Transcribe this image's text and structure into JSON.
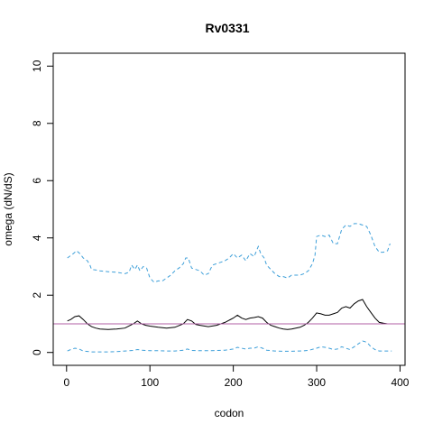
{
  "chart_data": {
    "type": "line",
    "title": "Rv0331",
    "xlabel": "codon",
    "ylabel": "omega (dN/dS)",
    "xlim": [
      -16,
      406
    ],
    "ylim": [
      -0.45,
      10.45
    ],
    "xticks": [
      0,
      100,
      200,
      300,
      400
    ],
    "yticks": [
      0,
      2,
      4,
      6,
      8,
      10
    ],
    "xtick_labels": [
      "0",
      "100",
      "200",
      "300",
      "400"
    ],
    "ytick_labels": [
      "0",
      "2",
      "4",
      "6",
      "8",
      "10"
    ],
    "grid": false,
    "legend": "none",
    "reference_line": {
      "y": 1,
      "color": "#b05fa5"
    },
    "series": [
      {
        "role": "upper",
        "color": "#3d9fd9",
        "style": "dashed",
        "x": [
          1,
          8,
          12,
          16,
          20,
          25,
          28,
          30,
          35,
          40,
          50,
          60,
          70,
          75,
          78,
          82,
          85,
          88,
          92,
          96,
          100,
          105,
          110,
          115,
          120,
          125,
          130,
          135,
          140,
          143,
          146,
          150,
          155,
          160,
          165,
          170,
          175,
          180,
          185,
          190,
          195,
          200,
          205,
          210,
          215,
          220,
          225,
          230,
          233,
          237,
          240,
          245,
          250,
          255,
          260,
          265,
          270,
          275,
          280,
          285,
          290,
          295,
          298,
          300,
          305,
          310,
          315,
          320,
          325,
          330,
          335,
          340,
          345,
          350,
          355,
          360,
          365,
          370,
          375,
          380,
          385,
          388
        ],
        "y": [
          3.3,
          3.45,
          3.55,
          3.45,
          3.3,
          3.2,
          3.05,
          2.9,
          2.88,
          2.85,
          2.82,
          2.8,
          2.75,
          2.8,
          3.05,
          2.9,
          3.05,
          2.85,
          3.0,
          2.95,
          2.6,
          2.45,
          2.5,
          2.5,
          2.6,
          2.7,
          2.85,
          2.95,
          3.1,
          3.3,
          3.3,
          2.95,
          2.9,
          2.85,
          2.7,
          2.75,
          3.05,
          3.1,
          3.15,
          3.2,
          3.3,
          3.45,
          3.3,
          3.4,
          3.2,
          3.45,
          3.35,
          3.7,
          3.45,
          3.3,
          3.05,
          2.9,
          2.75,
          2.65,
          2.65,
          2.6,
          2.7,
          2.7,
          2.7,
          2.75,
          2.85,
          3.1,
          3.4,
          4.05,
          4.1,
          4.05,
          4.1,
          3.8,
          3.8,
          4.3,
          4.45,
          4.4,
          4.5,
          4.5,
          4.45,
          4.4,
          4.1,
          3.7,
          3.5,
          3.5,
          3.55,
          3.8
        ]
      },
      {
        "role": "estimate",
        "color": "#000000",
        "style": "solid",
        "x": [
          1,
          5,
          10,
          15,
          20,
          25,
          30,
          35,
          40,
          50,
          60,
          70,
          80,
          85,
          90,
          95,
          100,
          110,
          120,
          130,
          140,
          145,
          150,
          155,
          160,
          170,
          180,
          190,
          200,
          205,
          210,
          215,
          220,
          225,
          230,
          235,
          240,
          245,
          250,
          255,
          260,
          265,
          270,
          275,
          280,
          285,
          290,
          295,
          300,
          305,
          310,
          315,
          320,
          325,
          330,
          335,
          340,
          345,
          350,
          355,
          360,
          365,
          370,
          375,
          380,
          385,
          390
        ],
        "y": [
          1.1,
          1.15,
          1.25,
          1.28,
          1.15,
          1.0,
          0.9,
          0.85,
          0.82,
          0.8,
          0.82,
          0.85,
          1.0,
          1.1,
          1.0,
          0.95,
          0.92,
          0.88,
          0.85,
          0.88,
          1.0,
          1.15,
          1.1,
          0.98,
          0.95,
          0.9,
          0.95,
          1.05,
          1.2,
          1.3,
          1.2,
          1.15,
          1.2,
          1.22,
          1.25,
          1.2,
          1.05,
          0.95,
          0.9,
          0.85,
          0.82,
          0.8,
          0.82,
          0.85,
          0.88,
          0.95,
          1.05,
          1.2,
          1.38,
          1.35,
          1.3,
          1.3,
          1.35,
          1.4,
          1.55,
          1.6,
          1.55,
          1.7,
          1.8,
          1.85,
          1.6,
          1.4,
          1.2,
          1.05,
          1.02,
          1.0,
          1.0
        ]
      },
      {
        "role": "lower",
        "color": "#3d9fd9",
        "style": "dashed",
        "x": [
          1,
          5,
          10,
          15,
          20,
          30,
          40,
          50,
          60,
          70,
          80,
          85,
          90,
          95,
          100,
          110,
          120,
          130,
          140,
          145,
          150,
          160,
          170,
          180,
          190,
          200,
          205,
          210,
          215,
          220,
          225,
          230,
          235,
          240,
          250,
          260,
          270,
          280,
          290,
          300,
          305,
          310,
          315,
          320,
          325,
          330,
          335,
          340,
          345,
          350,
          355,
          358,
          362,
          365,
          370,
          375,
          380,
          390
        ],
        "y": [
          0.05,
          0.1,
          0.15,
          0.12,
          0.05,
          0.02,
          0.02,
          0.02,
          0.03,
          0.05,
          0.07,
          0.1,
          0.08,
          0.07,
          0.06,
          0.06,
          0.05,
          0.05,
          0.08,
          0.12,
          0.07,
          0.06,
          0.06,
          0.07,
          0.08,
          0.12,
          0.18,
          0.15,
          0.12,
          0.15,
          0.15,
          0.2,
          0.15,
          0.08,
          0.05,
          0.04,
          0.04,
          0.05,
          0.07,
          0.15,
          0.2,
          0.18,
          0.15,
          0.1,
          0.12,
          0.2,
          0.15,
          0.1,
          0.2,
          0.3,
          0.4,
          0.38,
          0.3,
          0.2,
          0.1,
          0.05,
          0.05,
          0.05
        ]
      }
    ]
  }
}
